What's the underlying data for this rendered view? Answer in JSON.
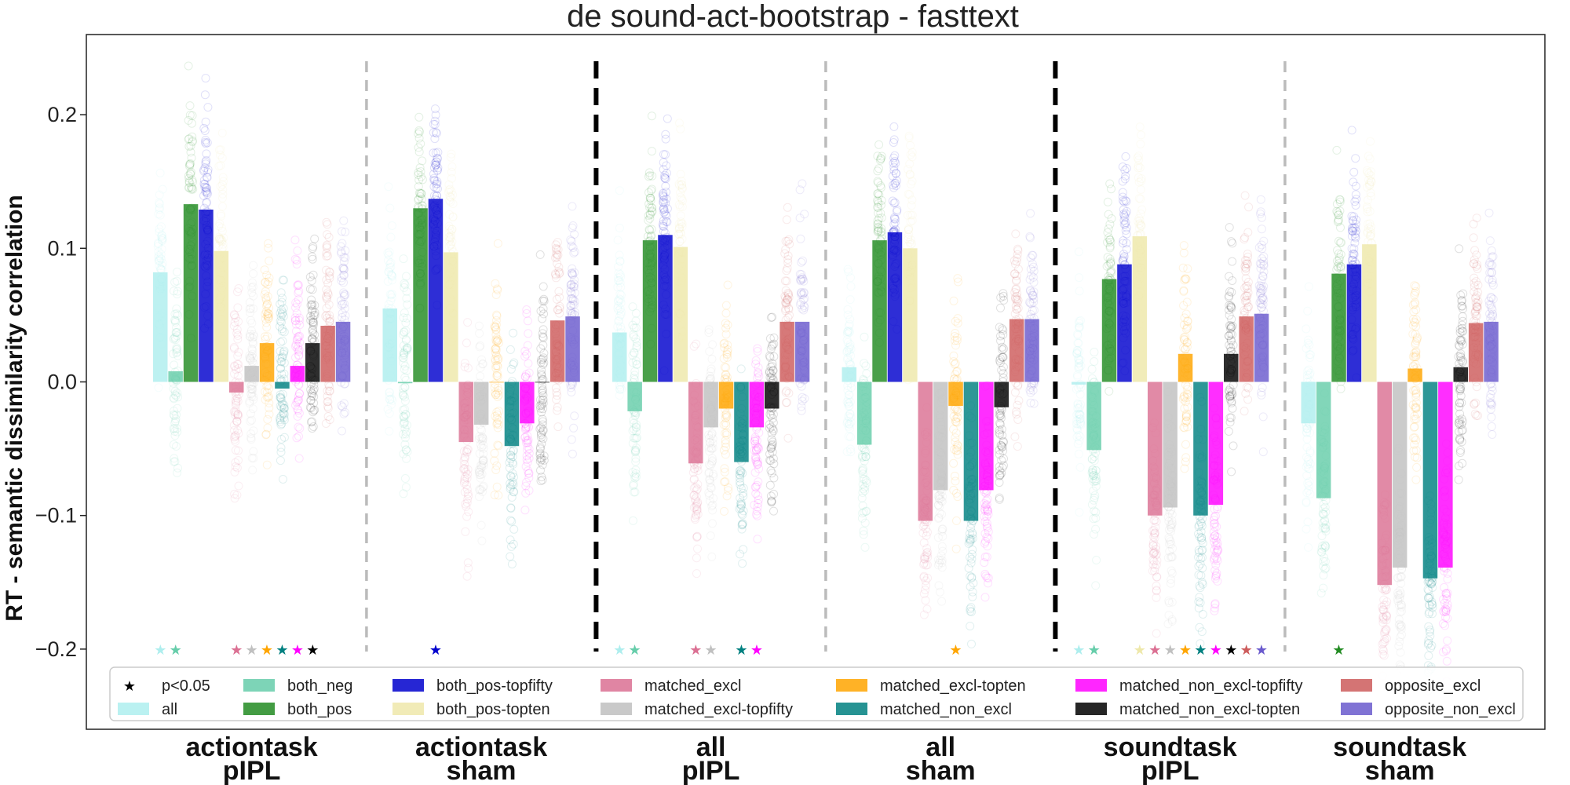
{
  "chart_data": {
    "type": "bar",
    "title": "de sound-act-bootstrap - fasttext",
    "ylabel": "RT - semantic dissimilarity correlation",
    "xlabel": "",
    "ylim": [
      -0.26,
      0.26
    ],
    "yticks": [
      -0.2,
      -0.1,
      0.0,
      0.1,
      0.2
    ],
    "ytick_labels": [
      "−0.2",
      "−0.1",
      "0.0",
      "0.1",
      "0.2"
    ],
    "grid": false,
    "legend_position": "bottom",
    "significance_legend_label": "p<0.05",
    "series": [
      {
        "name": "all",
        "color": "#aeeeee"
      },
      {
        "name": "both_neg",
        "color": "#66cdaa"
      },
      {
        "name": "both_pos",
        "color": "#228b22"
      },
      {
        "name": "both_pos-topfifty",
        "color": "#0000cd"
      },
      {
        "name": "both_pos-topten",
        "color": "#eee8aa"
      },
      {
        "name": "matched_excl",
        "color": "#db7093"
      },
      {
        "name": "matched_excl-topfifty",
        "color": "#c0c0c0"
      },
      {
        "name": "matched_excl-topten",
        "color": "#ffa500"
      },
      {
        "name": "matched_non_excl",
        "color": "#008080"
      },
      {
        "name": "matched_non_excl-topfifty",
        "color": "#ff00ff"
      },
      {
        "name": "matched_non_excl-topten",
        "color": "#000000"
      },
      {
        "name": "opposite_excl",
        "color": "#cd5c5c"
      },
      {
        "name": "opposite_non_excl",
        "color": "#6a5acd"
      }
    ],
    "groups": [
      {
        "label_line1": "actiontask",
        "label_line2": "pIPL",
        "values": [
          0.082,
          0.008,
          0.133,
          0.129,
          0.098,
          -0.008,
          0.012,
          0.029,
          -0.005,
          0.012,
          0.029,
          0.042,
          0.045
        ],
        "significant": [
          true,
          true,
          false,
          false,
          false,
          true,
          true,
          true,
          true,
          true,
          true,
          false,
          false
        ]
      },
      {
        "label_line1": "actiontask",
        "label_line2": "sham",
        "values": [
          0.055,
          -0.001,
          0.13,
          0.137,
          0.097,
          -0.045,
          -0.032,
          0.0,
          -0.048,
          -0.031,
          0.0,
          0.046,
          0.049
        ],
        "significant": [
          false,
          false,
          false,
          true,
          false,
          false,
          false,
          false,
          false,
          false,
          false,
          false,
          false
        ]
      },
      {
        "label_line1": "all",
        "label_line2": "pIPL",
        "values": [
          0.037,
          -0.022,
          0.106,
          0.11,
          0.101,
          -0.061,
          -0.034,
          -0.02,
          -0.06,
          -0.034,
          -0.02,
          0.045,
          0.045
        ],
        "significant": [
          true,
          true,
          false,
          false,
          false,
          true,
          true,
          false,
          true,
          true,
          false,
          false,
          false
        ]
      },
      {
        "label_line1": "all",
        "label_line2": "sham",
        "values": [
          0.011,
          -0.047,
          0.106,
          0.112,
          0.1,
          -0.104,
          -0.081,
          -0.018,
          -0.104,
          -0.081,
          -0.019,
          0.047,
          0.047
        ],
        "significant": [
          false,
          false,
          false,
          false,
          false,
          false,
          false,
          true,
          false,
          false,
          false,
          false,
          false
        ]
      },
      {
        "label_line1": "soundtask",
        "label_line2": "pIPL",
        "values": [
          -0.002,
          -0.051,
          0.077,
          0.088,
          0.109,
          -0.1,
          -0.094,
          0.021,
          -0.1,
          -0.092,
          0.021,
          0.049,
          0.051
        ],
        "significant": [
          true,
          true,
          false,
          false,
          true,
          true,
          true,
          true,
          true,
          true,
          true,
          true,
          true
        ]
      },
      {
        "label_line1": "soundtask",
        "label_line2": "sham",
        "values": [
          -0.031,
          -0.087,
          0.081,
          0.088,
          0.103,
          -0.152,
          -0.139,
          0.01,
          -0.147,
          -0.139,
          0.011,
          0.044,
          0.045
        ],
        "significant": [
          false,
          false,
          true,
          false,
          false,
          false,
          false,
          false,
          false,
          false,
          false,
          false,
          false
        ]
      }
    ],
    "separators": [
      "dashed-gray",
      "dashed-black",
      "dashed-gray",
      "dashed-black",
      "dashed-gray"
    ]
  }
}
